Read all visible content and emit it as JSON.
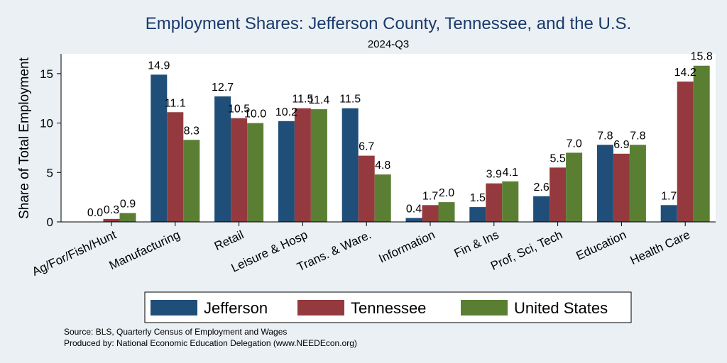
{
  "chart_data": {
    "type": "bar",
    "title": "Employment Shares: Jefferson County, Tennessee, and the U.S.",
    "subtitle": "2024-Q3",
    "xlabel": "",
    "ylabel": "Share of Total Employment",
    "ylim": [
      0,
      17
    ],
    "yticks": [
      0,
      5,
      10,
      15
    ],
    "grid": false,
    "legend_position": "bottom",
    "categories": [
      "Ag/For/Fish/Hunt",
      "Manufacturing",
      "Retail",
      "Leisure & Hosp",
      "Trans. & Ware.",
      "Information",
      "Fin & Ins",
      "Prof, Sci, Tech",
      "Education",
      "Health Care"
    ],
    "series": [
      {
        "name": "Jefferson",
        "color": "#1f4e79",
        "values": [
          0.0,
          14.9,
          12.7,
          10.2,
          11.5,
          0.4,
          1.5,
          2.6,
          7.8,
          1.7
        ],
        "labels": [
          "0.0",
          "14.9",
          "12.7",
          "10.2",
          "11.5",
          "0.4",
          "1.5",
          "2.6",
          "7.8",
          "1.7"
        ]
      },
      {
        "name": "Tennessee",
        "color": "#943a3f",
        "values": [
          0.3,
          11.1,
          10.5,
          11.5,
          6.7,
          1.7,
          3.9,
          5.5,
          6.9,
          14.2
        ],
        "labels": [
          "0.3",
          "11.1",
          "10.5",
          "11.5",
          "6.7",
          "1.7",
          "3.9",
          "5.5",
          "6.9",
          "14.2"
        ]
      },
      {
        "name": "United States",
        "color": "#5a7f33",
        "values": [
          0.9,
          8.3,
          10.0,
          11.4,
          4.8,
          2.0,
          4.1,
          7.0,
          7.8,
          15.8
        ],
        "labels": [
          "0.9",
          "8.3",
          "10.0",
          "11.4",
          "4.8",
          "2.0",
          "4.1",
          "7.0",
          "7.8",
          "15.8"
        ]
      }
    ],
    "notes": [
      "Source: BLS, Quarterly Census of Employment and Wages",
      "Produced by: National Economic Education Delegation (www.NEEDEcon.org)"
    ]
  },
  "colors": {
    "background": "#eaf0f4",
    "plot_background": "#ffffff",
    "title": "#1a3a6b"
  }
}
